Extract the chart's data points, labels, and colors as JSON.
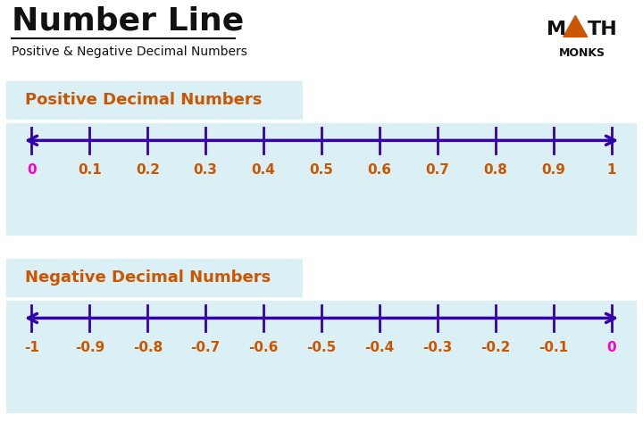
{
  "title": "Number Line",
  "subtitle": "Positive & Negative Decimal Numbers",
  "bg_color": "#ffffff",
  "section1_label": "Positive Decimal Numbers",
  "section1_bg": "#daf0f5",
  "section1_ticks": [
    0.0,
    0.1,
    0.2,
    0.3,
    0.4,
    0.5,
    0.6,
    0.7,
    0.8,
    0.9,
    1.0
  ],
  "section1_labels": [
    "0",
    "0.1",
    "0.2",
    "0.3",
    "0.4",
    "0.5",
    "0.6",
    "0.7",
    "0.8",
    "0.9",
    "1"
  ],
  "section1_zero_color": "#ff00cc",
  "section1_label_color": "#cc5500",
  "section2_label": "Negative Decimal Numbers",
  "section2_bg": "#daf0f5",
  "section2_ticks": [
    -1.0,
    -0.9,
    -0.8,
    -0.7,
    -0.6,
    -0.5,
    -0.4,
    -0.3,
    -0.2,
    -0.1,
    0.0
  ],
  "section2_labels": [
    "-1",
    "-0.9",
    "-0.8",
    "-0.7",
    "-0.6",
    "-0.5",
    "-0.4",
    "-0.3",
    "-0.2",
    "-0.1",
    "0"
  ],
  "section2_zero_color": "#ff00cc",
  "section2_label_color": "#cc5500",
  "line_color": "#3300aa",
  "tick_color": "#3300aa",
  "label_header_color": "#cc5500",
  "title_color": "#111111",
  "subtitle_color": "#111111"
}
